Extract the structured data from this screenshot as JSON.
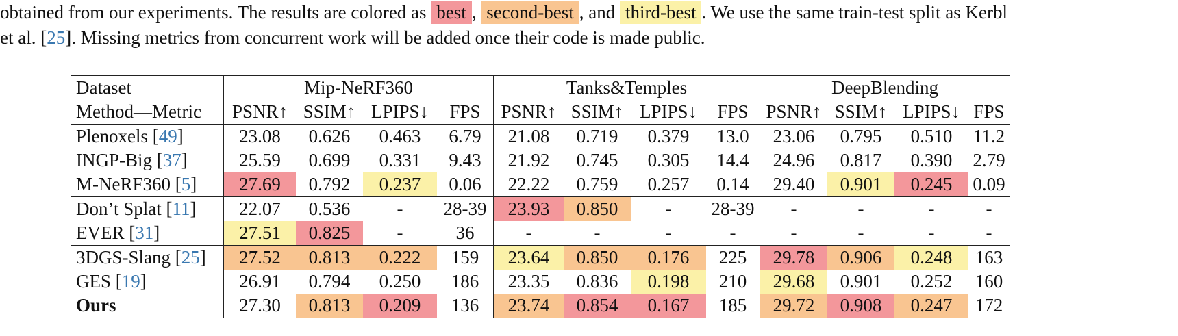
{
  "caption": {
    "line1_a": "obtained from our experiments. The results are colored as",
    "best": "best",
    "sep1": ",",
    "second": "second-best",
    "sep2": ", and",
    "third": "third-best",
    "line1_b": ". We use the same train-test split as  Kerbl",
    "line2_a": "et al. [",
    "line2_ref": "25",
    "line2_b": "]. Missing metrics from concurrent work will be added once their code is made public."
  },
  "table": {
    "header_dataset": "Dataset",
    "header_method": "Method—Metric",
    "datasets": [
      "Mip-NeRF360",
      "Tanks&Temples",
      "DeepBlending"
    ],
    "metrics": [
      "PSNR↑",
      "SSIM↑",
      "LPIPS↓",
      "FPS"
    ],
    "rows": [
      {
        "name": "Plenoxels",
        "ref": "49",
        "bold": false,
        "group": 1,
        "cells": [
          [
            "23.08",
            ""
          ],
          [
            "0.626",
            ""
          ],
          [
            "0.463",
            ""
          ],
          [
            "6.79",
            ""
          ],
          [
            "21.08",
            ""
          ],
          [
            "0.719",
            ""
          ],
          [
            "0.379",
            ""
          ],
          [
            "13.0",
            ""
          ],
          [
            "23.06",
            ""
          ],
          [
            "0.795",
            ""
          ],
          [
            "0.510",
            ""
          ],
          [
            "11.2",
            ""
          ]
        ]
      },
      {
        "name": "INGP-Big",
        "ref": "37",
        "bold": false,
        "group": 1,
        "cells": [
          [
            "25.59",
            ""
          ],
          [
            "0.699",
            ""
          ],
          [
            "0.331",
            ""
          ],
          [
            "9.43",
            ""
          ],
          [
            "21.92",
            ""
          ],
          [
            "0.745",
            ""
          ],
          [
            "0.305",
            ""
          ],
          [
            "14.4",
            ""
          ],
          [
            "24.96",
            ""
          ],
          [
            "0.817",
            ""
          ],
          [
            "0.390",
            ""
          ],
          [
            "2.79",
            ""
          ]
        ]
      },
      {
        "name": "M-NeRF360",
        "ref": "5",
        "bold": false,
        "group": 1,
        "cells": [
          [
            "27.69",
            "best"
          ],
          [
            "0.792",
            ""
          ],
          [
            "0.237",
            "third"
          ],
          [
            "0.06",
            ""
          ],
          [
            "22.22",
            ""
          ],
          [
            "0.759",
            ""
          ],
          [
            "0.257",
            ""
          ],
          [
            "0.14",
            ""
          ],
          [
            "29.40",
            ""
          ],
          [
            "0.901",
            "third"
          ],
          [
            "0.245",
            "best"
          ],
          [
            "0.09",
            ""
          ]
        ]
      },
      {
        "name": "Don’t Splat",
        "ref": "11",
        "bold": false,
        "group": 2,
        "cells": [
          [
            "22.07",
            ""
          ],
          [
            "0.536",
            ""
          ],
          [
            "-",
            ""
          ],
          [
            "28-39",
            ""
          ],
          [
            "23.93",
            "best"
          ],
          [
            "0.850",
            "second"
          ],
          [
            "-",
            ""
          ],
          [
            "28-39",
            ""
          ],
          [
            "-",
            ""
          ],
          [
            "-",
            ""
          ],
          [
            "-",
            ""
          ],
          [
            "-",
            ""
          ]
        ]
      },
      {
        "name": "EVER",
        "ref": "31",
        "bold": false,
        "group": 2,
        "cells": [
          [
            "27.51",
            "third"
          ],
          [
            "0.825",
            "best"
          ],
          [
            "-",
            ""
          ],
          [
            "36",
            ""
          ],
          [
            "-",
            ""
          ],
          [
            "-",
            ""
          ],
          [
            "-",
            ""
          ],
          [
            "-",
            ""
          ],
          [
            "-",
            ""
          ],
          [
            "-",
            ""
          ],
          [
            "-",
            ""
          ],
          [
            "-",
            ""
          ]
        ]
      },
      {
        "name": "3DGS-Slang",
        "ref": "25",
        "bold": false,
        "group": 3,
        "cells": [
          [
            "27.52",
            "second"
          ],
          [
            "0.813",
            "second"
          ],
          [
            "0.222",
            "second"
          ],
          [
            "159",
            ""
          ],
          [
            "23.64",
            "third"
          ],
          [
            "0.850",
            "second"
          ],
          [
            "0.176",
            "second"
          ],
          [
            "225",
            ""
          ],
          [
            "29.78",
            "best"
          ],
          [
            "0.906",
            "second"
          ],
          [
            "0.248",
            "third"
          ],
          [
            "163",
            ""
          ]
        ]
      },
      {
        "name": "GES",
        "ref": "19",
        "bold": false,
        "group": 3,
        "cells": [
          [
            "26.91",
            ""
          ],
          [
            "0.794",
            ""
          ],
          [
            "0.250",
            ""
          ],
          [
            "186",
            ""
          ],
          [
            "23.35",
            ""
          ],
          [
            "0.836",
            ""
          ],
          [
            "0.198",
            "third"
          ],
          [
            "210",
            ""
          ],
          [
            "29.68",
            "third"
          ],
          [
            "0.901",
            ""
          ],
          [
            "0.252",
            ""
          ],
          [
            "160",
            ""
          ]
        ]
      },
      {
        "name": "Ours",
        "ref": "",
        "bold": true,
        "group": 3,
        "cells": [
          [
            "27.30",
            ""
          ],
          [
            "0.813",
            "second"
          ],
          [
            "0.209",
            "best"
          ],
          [
            "136",
            ""
          ],
          [
            "23.74",
            "second"
          ],
          [
            "0.854",
            "best"
          ],
          [
            "0.167",
            "best"
          ],
          [
            "185",
            ""
          ],
          [
            "29.72",
            "second"
          ],
          [
            "0.908",
            "best"
          ],
          [
            "0.247",
            "second"
          ],
          [
            "172",
            ""
          ]
        ]
      }
    ]
  },
  "colors": {
    "best": "#f3979b",
    "second": "#f9c591",
    "third": "#fbf1a8",
    "link": "#3a78b0"
  }
}
